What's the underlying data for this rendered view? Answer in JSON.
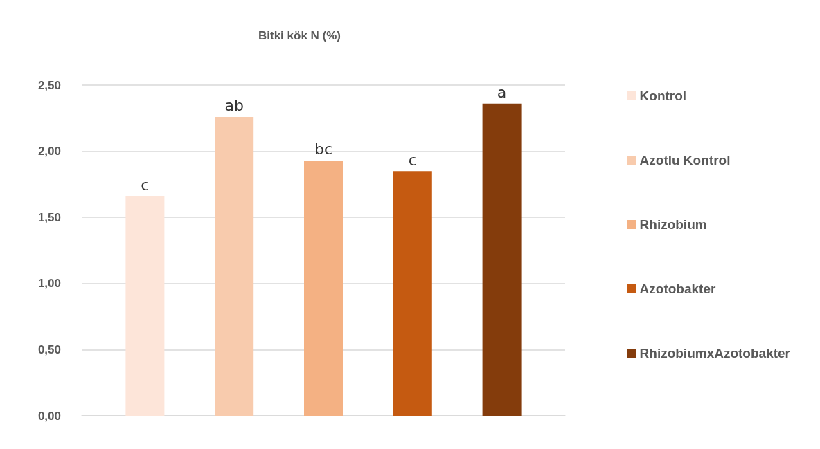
{
  "chart_data": {
    "type": "bar",
    "title": "Bitki kök N (%)",
    "categories": [
      null
    ],
    "series": [
      {
        "name": "Kontrol",
        "color": "#fde5d9",
        "values": [
          1.66
        ],
        "value_labels": [
          "c"
        ]
      },
      {
        "name": "Azotlu Kontrol",
        "color": "#f8cbad",
        "values": [
          2.26
        ],
        "value_labels": [
          "ab"
        ]
      },
      {
        "name": "Rhizobium",
        "color": "#f4b183",
        "values": [
          1.93
        ],
        "value_labels": [
          "bc"
        ]
      },
      {
        "name": "Azotobakter",
        "color": "#c55a11",
        "values": [
          1.85
        ],
        "value_labels": [
          "c"
        ]
      },
      {
        "name": "RhizobiumxAzotobakter",
        "color": "#843c0c",
        "values": [
          2.36
        ],
        "value_labels": [
          "a"
        ]
      }
    ],
    "ylim": [
      0,
      2.5
    ],
    "yticks": [
      {
        "value": 0,
        "label": "0,00"
      },
      {
        "value": 0.5,
        "label": "0,50"
      },
      {
        "value": 1,
        "label": "1,00"
      },
      {
        "value": 1.5,
        "label": "1,50"
      },
      {
        "value": 2,
        "label": "2,00"
      },
      {
        "value": 2.5,
        "label": "2,50"
      }
    ],
    "grid": "y",
    "legend": "right"
  }
}
